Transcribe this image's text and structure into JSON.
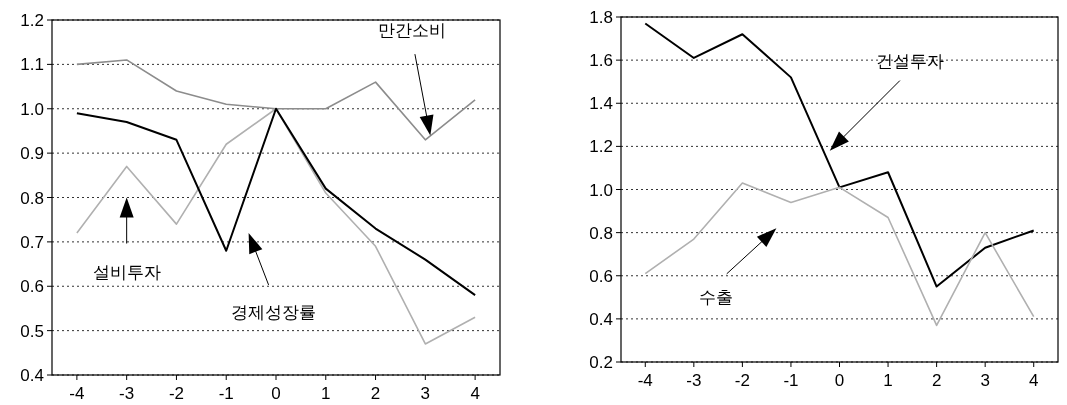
{
  "chart_data": [
    {
      "type": "line",
      "x": [
        -4,
        -3,
        -2,
        -1,
        0,
        1,
        2,
        3,
        4
      ],
      "xlim": [
        -4.5,
        4.5
      ],
      "xticks": [
        -4,
        -3,
        -2,
        -1,
        0,
        1,
        2,
        3,
        4
      ],
      "ylim": [
        0.4,
        1.2
      ],
      "yticks": [
        {
          "value": 0.4,
          "label": "0.4"
        },
        {
          "value": 0.5,
          "label": "0.5"
        },
        {
          "value": 0.6,
          "label": "0.6"
        },
        {
          "value": 0.7,
          "label": "0.7"
        },
        {
          "value": 0.8,
          "label": "0.8"
        },
        {
          "value": 0.9,
          "label": "0.9"
        },
        {
          "value": 1.0,
          "label": "1.0"
        },
        {
          "value": 1.1,
          "label": "1.1"
        },
        {
          "value": 1.2,
          "label": "1.2"
        }
      ],
      "grid": "y",
      "series": [
        {
          "color": "#8c8c8c",
          "values": [
            1.1,
            1.11,
            1.04,
            1.01,
            1.0,
            1.0,
            1.06,
            0.93,
            1.02
          ]
        },
        {
          "color": "#b0b0b0",
          "values": [
            0.72,
            0.87,
            0.74,
            0.92,
            1.0,
            0.81,
            0.69,
            0.47,
            0.53
          ]
        },
        {
          "color": "#000000",
          "values": [
            0.99,
            0.97,
            0.93,
            0.68,
            1.0,
            0.82,
            0.73,
            0.66,
            0.58
          ]
        }
      ],
      "annotations": [
        "만간소비",
        "설비투자",
        "경제성장률"
      ]
    },
    {
      "type": "line",
      "x": [
        -4,
        -3,
        -2,
        -1,
        0,
        1,
        2,
        3,
        4
      ],
      "xlim": [
        -4.5,
        4.5
      ],
      "xticks": [
        -4,
        -3,
        -2,
        -1,
        0,
        1,
        2,
        3,
        4
      ],
      "ylim": [
        0.2,
        1.8
      ],
      "yticks": [
        {
          "value": 0.2,
          "label": "0.2"
        },
        {
          "value": 0.4,
          "label": "0.4"
        },
        {
          "value": 0.6,
          "label": "0.6"
        },
        {
          "value": 0.8,
          "label": "0.8"
        },
        {
          "value": 1.0,
          "label": "1.0"
        },
        {
          "value": 1.2,
          "label": "1.2"
        },
        {
          "value": 1.4,
          "label": "1.4"
        },
        {
          "value": 1.6,
          "label": "1.6"
        },
        {
          "value": 1.8,
          "label": "1.8"
        }
      ],
      "grid": "y",
      "series": [
        {
          "color": "#000000",
          "values": [
            1.77,
            1.61,
            1.72,
            1.52,
            1.01,
            1.08,
            0.55,
            0.73,
            0.81
          ]
        },
        {
          "color": "#b0b0b0",
          "values": [
            0.61,
            0.77,
            1.03,
            0.94,
            1.01,
            0.87,
            0.37,
            0.8,
            0.41
          ]
        }
      ],
      "annotations": [
        "건설투자",
        "수출"
      ]
    }
  ]
}
